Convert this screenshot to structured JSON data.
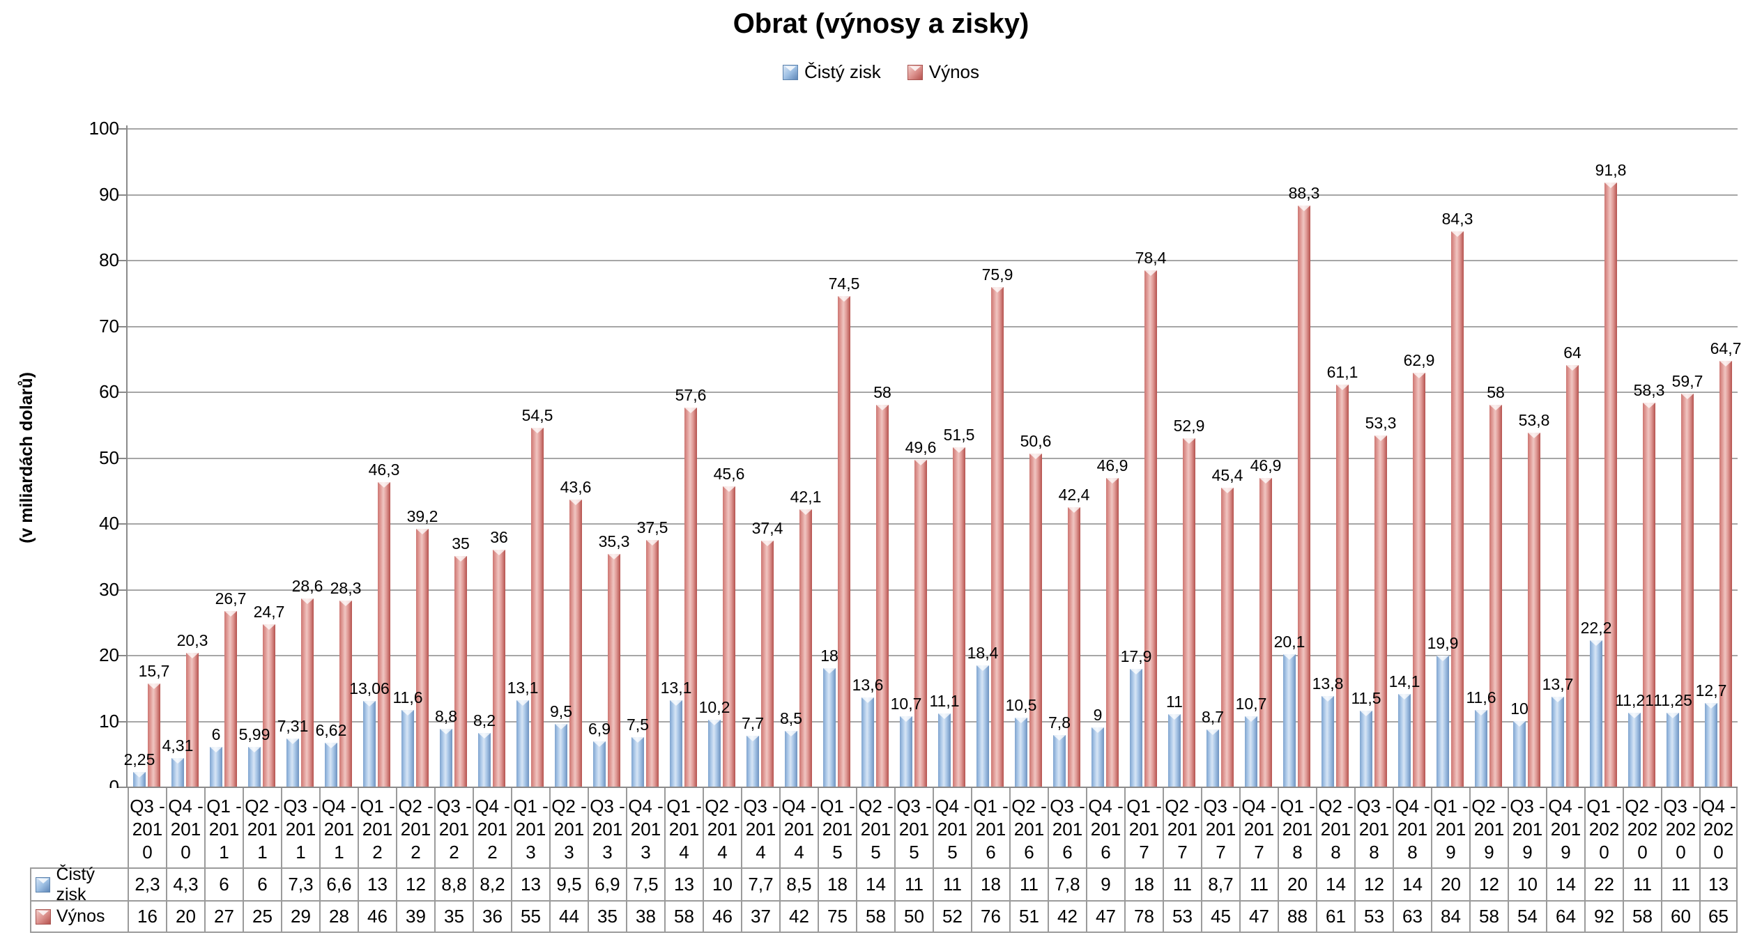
{
  "chart_data": {
    "type": "bar",
    "title": "Obrat (výnosy a zisky)",
    "ylabel": "(v miliardách dolarů)",
    "ylim": [
      0,
      100
    ],
    "y_step": 10,
    "grid": true,
    "legend_position": "top-center",
    "categories": [
      "Q3 - 2010",
      "Q4 - 2010",
      "Q1 - 2011",
      "Q2 - 2011",
      "Q3 - 2011",
      "Q4 - 2011",
      "Q1 - 2012",
      "Q2 - 2012",
      "Q3 - 2012",
      "Q4 - 2012",
      "Q1 - 2013",
      "Q2 - 2013",
      "Q3 - 2013",
      "Q4 - 2013",
      "Q1 - 2014",
      "Q2 - 2014",
      "Q3 - 2014",
      "Q4 - 2014",
      "Q1 - 2015",
      "Q2 - 2015",
      "Q3 - 2015",
      "Q4 - 2015",
      "Q1 - 2016",
      "Q2 - 2016",
      "Q3 - 2016",
      "Q4 - 2016",
      "Q1 - 2017",
      "Q2 - 2017",
      "Q3 - 2017",
      "Q4 - 2017",
      "Q1 - 2018",
      "Q2 - 2018",
      "Q3 - 2018",
      "Q4 - 2018",
      "Q1 - 2019",
      "Q2 - 2019",
      "Q3 - 2019",
      "Q4 - 2019",
      "Q1 - 2020",
      "Q2 - 2020",
      "Q3 - 2020",
      "Q4 - 2020"
    ],
    "series": [
      {
        "name": "Čistý zisk",
        "color": "#95b3d7",
        "values": [
          2.25,
          4.31,
          6,
          5.99,
          7.31,
          6.62,
          13.06,
          11.6,
          8.8,
          8.2,
          13.1,
          9.5,
          6.9,
          7.5,
          13.1,
          10.2,
          7.7,
          8.5,
          18,
          13.6,
          10.7,
          11.1,
          18.4,
          10.5,
          7.8,
          9,
          17.9,
          11,
          8.7,
          10.7,
          20.1,
          13.8,
          11.5,
          14.1,
          19.9,
          11.6,
          10,
          13.7,
          22.2,
          11.21,
          11.25,
          12.7
        ],
        "labels": [
          "2,25",
          "4,31",
          "6",
          "5,99",
          "7,31",
          "6,62",
          "13,06",
          "11,6",
          "8,8",
          "8,2",
          "13,1",
          "9,5",
          "6,9",
          "7,5",
          "13,1",
          "10,2",
          "7,7",
          "8,5",
          "18",
          "13,6",
          "10,7",
          "11,1",
          "18,4",
          "10,5",
          "7,8",
          "9",
          "17,9",
          "11",
          "8,7",
          "10,7",
          "20,1",
          "13,8",
          "11,5",
          "14,1",
          "19,9",
          "11,6",
          "10",
          "13,7",
          "22,2",
          "11,21",
          "11,25",
          "12,7"
        ]
      },
      {
        "name": "Výnos",
        "color": "#d99694",
        "values": [
          15.7,
          20.3,
          26.7,
          24.7,
          28.6,
          28.3,
          46.3,
          39.2,
          35,
          36,
          54.5,
          43.6,
          35.3,
          37.5,
          57.6,
          45.6,
          37.4,
          42.1,
          74.5,
          58,
          49.6,
          51.5,
          75.9,
          50.6,
          42.4,
          46.9,
          78.4,
          52.9,
          45.4,
          46.9,
          88.3,
          61.1,
          53.3,
          62.9,
          84.3,
          58,
          53.8,
          64,
          91.8,
          58.3,
          59.7,
          64.7
        ],
        "labels": [
          "15,7",
          "20,3",
          "26,7",
          "24,7",
          "28,6",
          "28,3",
          "46,3",
          "39,2",
          "35",
          "36",
          "54,5",
          "43,6",
          "35,3",
          "37,5",
          "57,6",
          "45,6",
          "37,4",
          "42,1",
          "74,5",
          "58",
          "49,6",
          "51,5",
          "75,9",
          "50,6",
          "42,4",
          "46,9",
          "78,4",
          "52,9",
          "45,4",
          "46,9",
          "88,3",
          "61,1",
          "53,3",
          "62,9",
          "84,3",
          "58",
          "53,8",
          "64",
          "91,8",
          "58,3",
          "59,7",
          "64,7"
        ]
      }
    ],
    "data_table": {
      "rows": [
        {
          "name": "Čistý zisk",
          "values": [
            "2,3",
            "4,3",
            "6",
            "6",
            "7,3",
            "6,6",
            "13",
            "12",
            "8,8",
            "8,2",
            "13",
            "9,5",
            "6,9",
            "7,5",
            "13",
            "10",
            "7,7",
            "8,5",
            "18",
            "14",
            "11",
            "11",
            "18",
            "11",
            "7,8",
            "9",
            "18",
            "11",
            "8,7",
            "11",
            "20",
            "14",
            "12",
            "14",
            "20",
            "12",
            "10",
            "14",
            "22",
            "11",
            "11",
            "13"
          ]
        },
        {
          "name": "Výnos",
          "values": [
            "16",
            "20",
            "27",
            "25",
            "29",
            "28",
            "46",
            "39",
            "35",
            "36",
            "55",
            "44",
            "35",
            "38",
            "58",
            "46",
            "37",
            "42",
            "75",
            "58",
            "50",
            "52",
            "76",
            "51",
            "42",
            "47",
            "78",
            "53",
            "45",
            "47",
            "88",
            "61",
            "53",
            "63",
            "84",
            "58",
            "54",
            "64",
            "92",
            "58",
            "60",
            "65"
          ]
        }
      ]
    }
  }
}
